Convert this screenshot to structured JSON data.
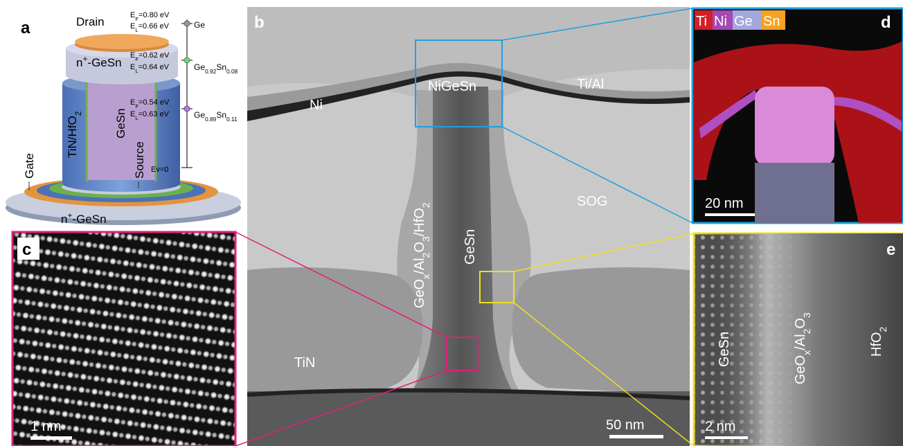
{
  "panels": {
    "a": {
      "label": "a",
      "device": {
        "drain": "Drain",
        "top_contact": [
          "n",
          "+",
          "-GeSn"
        ],
        "gate_stack": [
          "TiN/HfO",
          "2"
        ],
        "channel": "GeSn",
        "gate": "Gate",
        "source": "Source",
        "bottom_contact": [
          "n",
          "+",
          "-GeSn"
        ]
      },
      "levels": [
        {
          "ef": [
            "E",
            "F",
            "=0.80 eV"
          ],
          "el": [
            "E",
            "L",
            "=0.66 eV"
          ],
          "material": [
            "Ge"
          ]
        },
        {
          "ef": [
            "E",
            "F",
            "=0.62 eV"
          ],
          "el": [
            "E",
            "L",
            "=0.64 eV"
          ],
          "material": [
            "Ge",
            "0.92",
            "Sn",
            "0.08"
          ]
        },
        {
          "ef": [
            "E",
            "F",
            "=0.54 eV"
          ],
          "el": [
            "E",
            "L",
            "=0.63 eV"
          ],
          "material": [
            "Ge",
            "0.89",
            "Sn",
            "0.11"
          ]
        }
      ],
      "ev": "Ev=0"
    },
    "b": {
      "label": "b",
      "regions": {
        "ni": "Ni",
        "nigesn": "NiGeSn",
        "tial": "Ti/Al",
        "sog": "SOG",
        "stack": [
          "GeO",
          "x",
          "/Al",
          "2",
          "O",
          "3",
          "/HfO",
          "2"
        ],
        "gesn": "GeSn",
        "tin": "TiN"
      },
      "scale_bar": "50 nm"
    },
    "c": {
      "label": "c",
      "scale_bar": "1 nm"
    },
    "d": {
      "label": "d",
      "elements": [
        "Ti",
        "Ni",
        "Ge",
        "Sn"
      ],
      "scale_bar": "20 nm"
    },
    "e": {
      "label": "e",
      "regions": {
        "gesn": "GeSn",
        "stack": [
          "GeO",
          "x",
          "/Al",
          "2",
          "O",
          "3"
        ],
        "hfo2": [
          "HfO",
          "2"
        ]
      },
      "scale_bar": "2 nm"
    }
  }
}
